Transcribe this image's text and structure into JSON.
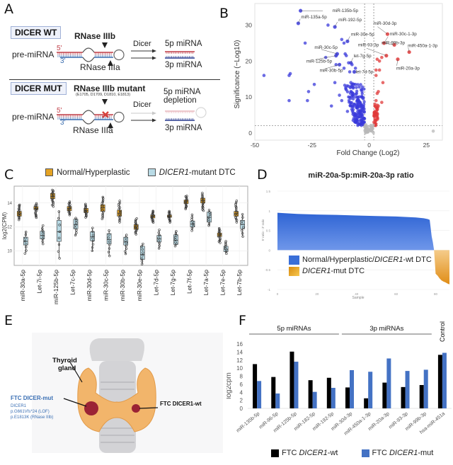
{
  "figure": {
    "panel_labels": [
      "A",
      "B",
      "C",
      "D",
      "E",
      "F"
    ]
  },
  "panel_a": {
    "wt": {
      "box_label": "DICER WT",
      "enzyme_top": "RNase IIIb",
      "enzyme_bottom": "RNase IIIa",
      "precursor": "pre-miRNA",
      "five_prime": "5'",
      "three_prime": "3'",
      "process": "Dicer",
      "product_5p": "5p miRNA",
      "product_3p": "3p miRNA"
    },
    "mut": {
      "box_label": "DICER MUT",
      "enzyme_top": "RNase IIIb mutant",
      "mutations": "(E1705, D1709, D1810, E1813)",
      "enzyme_bottom": "RNase IIIa",
      "precursor": "pre-miRNA",
      "five_prime": "5'",
      "three_prime": "3'",
      "process": "Dicer",
      "product_5p_line1": "5p miRNA",
      "product_5p_line2": "depletion",
      "product_3p": "3p miRNA"
    },
    "colors": {
      "five_strand": "#c0404a",
      "three_strand": "#3d6fb0",
      "box_border": "#9fb0d6"
    }
  },
  "chart_data": [
    {
      "id": "B",
      "type": "scatter",
      "title": "",
      "xlabel": "Fold Change (Log2)",
      "ylabel": "Significance (−Log10)",
      "xlim": [
        -50,
        32
      ],
      "ylim": [
        -2,
        36
      ],
      "xticks": [
        -50,
        -25,
        0,
        25
      ],
      "yticks": [
        0,
        10,
        20,
        30
      ],
      "thresholds": {
        "x": [
          -2,
          2
        ],
        "y": 2
      },
      "colors": {
        "down": "#3a3adb",
        "up": "#e03a3a",
        "ns": "#b8b8b8"
      },
      "labeled_points": [
        {
          "label": "miR-135b-5p",
          "x": -30,
          "y": 34,
          "group": "down"
        },
        {
          "label": "miR-135a-5p",
          "x": -31,
          "y": 30.5,
          "group": "down"
        },
        {
          "label": "miR-192-5p",
          "x": -15,
          "y": 29.5,
          "group": "down"
        },
        {
          "label": "miR-30e-5p",
          "x": -9.5,
          "y": 25.5,
          "group": "down"
        },
        {
          "label": "miR-30c-5p",
          "x": -14,
          "y": 22,
          "group": "down"
        },
        {
          "label": "miR-125b-5p",
          "x": -14.5,
          "y": 21.5,
          "group": "down"
        },
        {
          "label": "let-7g-5p",
          "x": -8,
          "y": 19.5,
          "group": "down"
        },
        {
          "label": "miR-30b-5p",
          "x": -13,
          "y": 19,
          "group": "down"
        },
        {
          "label": "let-7d-5p",
          "x": -6.5,
          "y": 17,
          "group": "down"
        },
        {
          "label": "miR-30d-3p",
          "x": 8,
          "y": 27.5,
          "group": "up"
        },
        {
          "label": "miR-30c-1-3p",
          "x": 6.5,
          "y": 25,
          "group": "up"
        },
        {
          "label": "miR-93-3p",
          "x": 7.5,
          "y": 21.5,
          "group": "up"
        },
        {
          "label": "miR-99b-3p",
          "x": 11,
          "y": 24.5,
          "group": "up"
        },
        {
          "label": "miR-450a-1-3p",
          "x": 17.5,
          "y": 22.5,
          "group": "up"
        },
        {
          "label": "miR-20a-3p",
          "x": 12.5,
          "y": 20.5,
          "group": "up"
        }
      ],
      "other_points": {
        "down": [
          [
            -46,
            16
          ],
          [
            -35,
            16
          ],
          [
            -34.5,
            16.5
          ],
          [
            -35,
            9
          ],
          [
            -28,
            25
          ],
          [
            -27,
            9
          ],
          [
            -26.5,
            11.5
          ],
          [
            -24,
            13.5
          ],
          [
            -19,
            21
          ],
          [
            -18,
            30
          ],
          [
            -16.5,
            7.5
          ],
          [
            -15,
            14
          ],
          [
            -14.5,
            19
          ],
          [
            -13,
            10.5
          ],
          [
            -12,
            26
          ],
          [
            -11,
            25
          ],
          [
            -11,
            18
          ],
          [
            -10.5,
            22
          ],
          [
            -10,
            21.5
          ],
          [
            -12,
            9
          ],
          [
            -9,
            19.5
          ],
          [
            -8.5,
            17
          ],
          [
            -8,
            14
          ],
          [
            -9,
            13
          ],
          [
            -7.5,
            19
          ],
          [
            -6,
            18
          ],
          [
            -10,
            12
          ],
          [
            -9,
            10
          ],
          [
            -8,
            11.5
          ],
          [
            -7,
            12.5
          ],
          [
            -6,
            13.5
          ],
          [
            -5.5,
            11
          ],
          [
            -5,
            10
          ],
          [
            -4.5,
            9
          ],
          [
            -7,
            9.5
          ],
          [
            -6.5,
            8
          ],
          [
            -5.5,
            7
          ],
          [
            -4,
            8.5
          ],
          [
            -3.5,
            7.5
          ],
          [
            -5,
            6
          ],
          [
            -4,
            5.5
          ],
          [
            -3,
            6.5
          ],
          [
            -3,
            5
          ],
          [
            -2.5,
            4
          ],
          [
            -4.5,
            4.5
          ],
          [
            -6,
            5
          ],
          [
            -3.5,
            3.5
          ],
          [
            -2.5,
            3
          ],
          [
            -5,
            3
          ],
          [
            -7,
            6.5
          ],
          [
            -8,
            8
          ],
          [
            -9.5,
            6
          ],
          [
            -6,
            4
          ],
          [
            -3,
            4.5
          ],
          [
            -4,
            2.5
          ],
          [
            -2.5,
            2.5
          ],
          [
            -7,
            3.5
          ]
        ],
        "up": [
          [
            3,
            17.5
          ],
          [
            3.5,
            20.5
          ],
          [
            4.5,
            20
          ],
          [
            4.5,
            17.5
          ],
          [
            5.5,
            21
          ],
          [
            6,
            14
          ],
          [
            3,
            16
          ],
          [
            3.5,
            11
          ],
          [
            4,
            11.5
          ],
          [
            3,
            9
          ],
          [
            4,
            7.5
          ],
          [
            5.5,
            8.5
          ],
          [
            2.5,
            8
          ],
          [
            2.5,
            6
          ],
          [
            3,
            5
          ],
          [
            2.5,
            4
          ],
          [
            3,
            3.5
          ],
          [
            3.5,
            6.5
          ],
          [
            2.5,
            7.5
          ],
          [
            3,
            2.5
          ]
        ],
        "ns": [
          [
            -1.5,
            1.5
          ],
          [
            -1,
            1
          ],
          [
            -0.8,
            0.4
          ],
          [
            -1.2,
            0.8
          ],
          [
            -1.7,
            2
          ],
          [
            -0.5,
            0.3
          ],
          [
            1,
            1
          ],
          [
            1.5,
            1.6
          ],
          [
            1.2,
            0.5
          ],
          [
            0.8,
            1.8
          ],
          [
            1.8,
            2.2
          ],
          [
            -1.5,
            2.3
          ],
          [
            28,
            0.5
          ]
        ]
      }
    },
    {
      "id": "C",
      "type": "box",
      "title": "",
      "xlabel": "",
      "ylabel": "log2(CPM)",
      "ylim": [
        8.8,
        15.4
      ],
      "yticks": [
        10,
        12,
        14
      ],
      "legend": [
        "Normal/Hyperplastic",
        "DICER1-mutant DTC"
      ],
      "legend_position": "top",
      "colors": {
        "normal": "#e5a324",
        "mutant": "#b9dbe6"
      },
      "categories": [
        "miR-30a-5p",
        "Let-7i-5p",
        "miR-125b-5p",
        "Let-7c-5p",
        "miR-30d-5p",
        "miR-30c-5p",
        "miR-30b-5p",
        "miR-30e-5p",
        "Let-7d-5p",
        "Let-7g-5p",
        "Let-7f-5p",
        "Let-7a-5p",
        "Let-7e-5p",
        "Let-7b-5p"
      ],
      "series": [
        {
          "name": "Normal/Hyperplastic",
          "stats": [
            {
              "min": 12.6,
              "q1": 12.9,
              "median": 13.1,
              "q3": 13.3,
              "max": 13.85
            },
            {
              "min": 12.8,
              "q1": 13.45,
              "median": 13.55,
              "q3": 13.7,
              "max": 13.95
            },
            {
              "min": 13.7,
              "q1": 14.35,
              "median": 14.55,
              "q3": 14.8,
              "max": 15.1
            },
            {
              "min": 13.0,
              "q1": 13.35,
              "median": 13.55,
              "q3": 13.7,
              "max": 14.1
            },
            {
              "min": 12.8,
              "q1": 13.2,
              "median": 13.35,
              "q3": 13.55,
              "max": 13.9
            },
            {
              "min": 12.7,
              "q1": 13.3,
              "median": 13.6,
              "q3": 13.85,
              "max": 14.5
            },
            {
              "min": 12.4,
              "q1": 12.9,
              "median": 13.15,
              "q3": 13.4,
              "max": 14.15
            },
            {
              "min": 11.4,
              "q1": 11.8,
              "median": 12.0,
              "q3": 12.2,
              "max": 12.7
            },
            {
              "min": 12.4,
              "q1": 12.75,
              "median": 12.9,
              "q3": 13.0,
              "max": 13.35
            },
            {
              "min": 12.4,
              "q1": 12.8,
              "median": 12.9,
              "q3": 13.0,
              "max": 13.3
            },
            {
              "min": 13.5,
              "q1": 13.95,
              "median": 14.1,
              "q3": 14.25,
              "max": 14.6
            },
            {
              "min": 13.35,
              "q1": 14.0,
              "median": 14.2,
              "q3": 14.4,
              "max": 14.8
            },
            {
              "min": 10.7,
              "q1": 11.2,
              "median": 11.35,
              "q3": 11.5,
              "max": 11.9
            },
            {
              "min": 12.4,
              "q1": 12.9,
              "median": 13.1,
              "q3": 13.3,
              "max": 14.15
            }
          ]
        },
        {
          "name": "DICER1-mutant DTC",
          "stats": [
            {
              "min": 9.8,
              "q1": 10.5,
              "median": 10.8,
              "q3": 11.15,
              "max": 11.6
            },
            {
              "min": 10.6,
              "q1": 11.0,
              "median": 11.3,
              "q3": 11.65,
              "max": 12.1
            },
            {
              "min": 9.4,
              "q1": 10.8,
              "median": 11.6,
              "q3": 12.55,
              "max": 13.3
            },
            {
              "min": 11.3,
              "q1": 11.85,
              "median": 12.2,
              "q3": 12.65,
              "max": 12.75
            },
            {
              "min": 10.0,
              "q1": 10.85,
              "median": 11.2,
              "q3": 11.6,
              "max": 11.9
            },
            {
              "min": 9.6,
              "q1": 10.6,
              "median": 10.95,
              "q3": 11.45,
              "max": 11.7
            },
            {
              "min": 9.75,
              "q1": 10.5,
              "median": 10.75,
              "q3": 11.15,
              "max": 11.35
            },
            {
              "min": 8.9,
              "q1": 9.3,
              "median": 9.7,
              "q3": 10.4,
              "max": 10.6
            },
            {
              "min": 10.2,
              "q1": 10.75,
              "median": 11.0,
              "q3": 11.3,
              "max": 11.75
            },
            {
              "min": 10.4,
              "q1": 10.55,
              "median": 10.9,
              "q3": 11.35,
              "max": 11.65
            },
            {
              "min": 11.7,
              "q1": 12.0,
              "median": 12.25,
              "q3": 12.5,
              "max": 13.0
            },
            {
              "min": 12.1,
              "q1": 12.4,
              "median": 12.8,
              "q3": 13.25,
              "max": 13.4
            },
            {
              "min": 9.8,
              "q1": 9.95,
              "median": 10.15,
              "q3": 10.4,
              "max": 10.8
            },
            {
              "min": 11.2,
              "q1": 11.85,
              "median": 12.2,
              "q3": 12.55,
              "max": 13.05
            }
          ]
        }
      ]
    },
    {
      "id": "D",
      "type": "area",
      "title": "miR-20a-5p:miR-20a-3p ratio",
      "xlabel": "Sample",
      "ylabel": "5' ratio - 3' ratio",
      "xlim": [
        0,
        87
      ],
      "ylim": [
        -1,
        1.5
      ],
      "xticks": [
        0,
        20,
        40,
        60,
        80
      ],
      "yticks": [
        -1,
        -0.5,
        0,
        0.5,
        1,
        1.5
      ],
      "legend_position": "bottom-left",
      "series": [
        {
          "name": "Normal/Hyperplastic/DICER1-wt DTC",
          "color": "#3a6fd8",
          "x": [
            0,
            10,
            20,
            30,
            40,
            50,
            60,
            70,
            74,
            76,
            77,
            78,
            78.6,
            79.2
          ],
          "y": [
            0.95,
            0.92,
            0.905,
            0.895,
            0.88,
            0.865,
            0.855,
            0.83,
            0.81,
            0.79,
            0.77,
            0.35,
            0.2,
            0.0
          ]
        },
        {
          "name": "DICER1-mut DTC",
          "color": "#e9a12b",
          "x": [
            79.2,
            80,
            81,
            82,
            83,
            84,
            85,
            86,
            87
          ],
          "y": [
            0.0,
            -0.6,
            -0.65,
            -0.72,
            -0.77,
            -0.8,
            -0.82,
            -0.85,
            -0.87
          ]
        }
      ]
    },
    {
      "id": "F",
      "type": "bar",
      "title": "",
      "xlabel": "",
      "ylabel": "log2cpm",
      "ylim": [
        0,
        16
      ],
      "yticks": [
        0,
        2,
        4,
        6,
        8,
        10,
        12,
        14,
        16
      ],
      "groups": [
        {
          "label": "5p miRNAs",
          "range": [
            0,
            4
          ]
        },
        {
          "label": "3p miRNAs",
          "range": [
            5,
            9
          ]
        },
        {
          "label": "Control",
          "range": [
            10,
            10
          ]
        }
      ],
      "categories": [
        "miR-135b-5p",
        "miR-96-5p",
        "miR-125b-5p",
        "miR-182-5p",
        "miR-192-5p",
        "miR-30d-3p",
        "miR-450a-1-3p",
        "miR-20a-3p",
        "miR-93-3p",
        "miR-99b-3p",
        "hsa-miR-451a"
      ],
      "series": [
        {
          "name": "FTC DICER1-wt",
          "color": "#000000",
          "values": [
            11.0,
            7.8,
            14.1,
            7.0,
            7.6,
            5.2,
            2.5,
            6.4,
            5.3,
            5.8,
            13.3
          ]
        },
        {
          "name": "FTC DICER1-mut",
          "color": "#4472c4",
          "values": [
            6.8,
            3.7,
            11.6,
            4.1,
            5.1,
            9.5,
            9.1,
            12.4,
            9.3,
            9.6,
            13.8
          ]
        }
      ],
      "legend_position": "bottom"
    }
  ],
  "panel_e": {
    "organ_label_line1": "Thyroid",
    "organ_label_line2": "gland",
    "mut_title": "FTC DICER-mut",
    "mut_gene": "DICER1",
    "mut_variant1": "p.G661Vfs*24 (LOF)",
    "mut_variant2": "p.E1813K (RNase IIIb)",
    "wt_label": "FTC DICER1-wt",
    "colors": {
      "thyroid": "#f2b56b",
      "tumor": "#9b2335",
      "trachea": "#cfcfd2",
      "mut_text": "#3a6fb4"
    }
  },
  "legend_c": {
    "normal": "Normal/Hyperplastic",
    "mutant_italic": "DICER1",
    "mutant_rest": "-mutant DTC"
  },
  "legend_d": {
    "wt_prefix": "Normal/Hyperplastic/",
    "wt_italic": "DICER1",
    "wt_suffix": "-wt DTC",
    "mut_italic": "DICER1",
    "mut_suffix": "-mut DTC"
  },
  "legend_f": {
    "wt_prefix": "FTC ",
    "wt_italic": "DICER1",
    "wt_suffix": "-wt",
    "mut_prefix": "FTC ",
    "mut_italic": "DICER1",
    "mut_suffix": "-mut"
  }
}
